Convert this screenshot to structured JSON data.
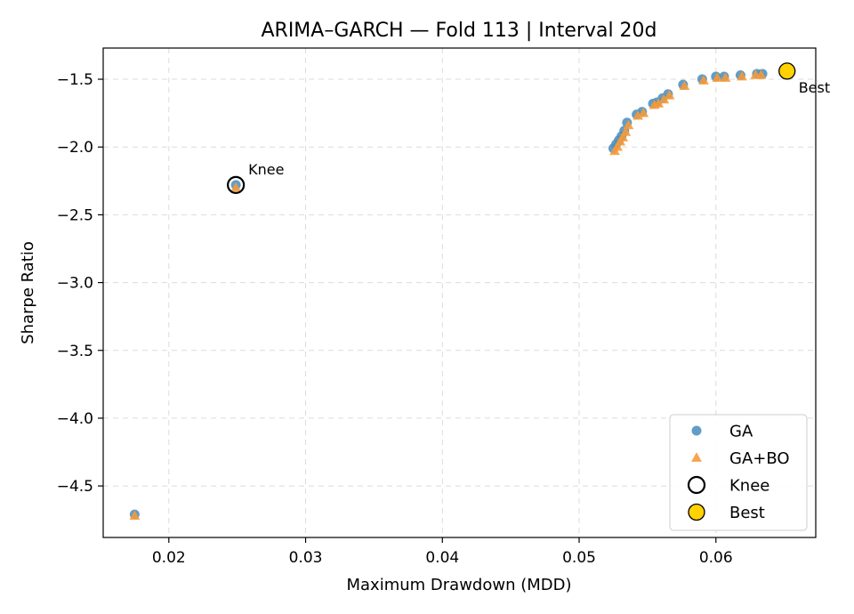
{
  "chart_data": {
    "type": "scatter",
    "title": "ARIMA–GARCH — Fold 113 | Interval 20d",
    "xlabel": "Maximum Drawdown (MDD)",
    "ylabel": "Sharpe Ratio",
    "xlim": [
      0.0152,
      0.0673
    ],
    "ylim": [
      -4.88,
      -1.27
    ],
    "xticks": [
      0.02,
      0.03,
      0.04,
      0.05,
      0.06
    ],
    "xtick_labels": [
      "0.02",
      "0.03",
      "0.04",
      "0.05",
      "0.06"
    ],
    "yticks": [
      -1.5,
      -2.0,
      -2.5,
      -3.0,
      -3.5,
      -4.0,
      -4.5
    ],
    "ytick_labels": [
      "−1.5",
      "−2.0",
      "−2.5",
      "−3.0",
      "−3.5",
      "−4.0",
      "−4.5"
    ],
    "grid": true,
    "legend_position": "bottom-right",
    "series": [
      {
        "name": "GA",
        "marker": "circle",
        "color": "#4c8fbf",
        "points": [
          [
            0.0175,
            -4.71
          ],
          [
            0.0249,
            -2.28
          ],
          [
            0.0525,
            -2.01
          ],
          [
            0.0527,
            -1.98
          ],
          [
            0.0529,
            -1.95
          ],
          [
            0.0531,
            -1.92
          ],
          [
            0.0533,
            -1.88
          ],
          [
            0.0535,
            -1.82
          ],
          [
            0.0542,
            -1.76
          ],
          [
            0.0546,
            -1.74
          ],
          [
            0.0554,
            -1.68
          ],
          [
            0.0557,
            -1.67
          ],
          [
            0.0561,
            -1.64
          ],
          [
            0.0565,
            -1.61
          ],
          [
            0.0576,
            -1.54
          ],
          [
            0.059,
            -1.5
          ],
          [
            0.06,
            -1.48
          ],
          [
            0.0606,
            -1.48
          ],
          [
            0.0618,
            -1.47
          ],
          [
            0.063,
            -1.46
          ],
          [
            0.0634,
            -1.46
          ]
        ]
      },
      {
        "name": "GA+BO",
        "marker": "triangle",
        "color": "#f59a3a",
        "points": [
          [
            0.0175,
            -4.72
          ],
          [
            0.0249,
            -2.3
          ],
          [
            0.0526,
            -2.03
          ],
          [
            0.0528,
            -2.0
          ],
          [
            0.053,
            -1.96
          ],
          [
            0.0532,
            -1.93
          ],
          [
            0.0534,
            -1.89
          ],
          [
            0.0536,
            -1.84
          ],
          [
            0.0543,
            -1.77
          ],
          [
            0.0547,
            -1.75
          ],
          [
            0.0555,
            -1.69
          ],
          [
            0.0558,
            -1.68
          ],
          [
            0.0562,
            -1.65
          ],
          [
            0.0566,
            -1.62
          ],
          [
            0.0577,
            -1.55
          ],
          [
            0.0591,
            -1.51
          ],
          [
            0.0601,
            -1.49
          ],
          [
            0.0607,
            -1.49
          ],
          [
            0.0619,
            -1.48
          ],
          [
            0.0629,
            -1.47
          ],
          [
            0.0633,
            -1.47
          ]
        ]
      }
    ],
    "highlights": [
      {
        "name": "Knee",
        "x": 0.0249,
        "y": -2.28,
        "marker": "open-circle",
        "color": "#000000",
        "label": "Knee"
      },
      {
        "name": "Best",
        "x": 0.0652,
        "y": -1.44,
        "marker": "filled-circle",
        "color": "#ffd200",
        "edge": "#000000",
        "label": "Best"
      }
    ],
    "legend": [
      {
        "label": "GA",
        "marker": "circle",
        "color": "#4c8fbf"
      },
      {
        "label": "GA+BO",
        "marker": "triangle",
        "color": "#f59a3a"
      },
      {
        "label": "Knee",
        "marker": "open-circle",
        "color": "#000000"
      },
      {
        "label": "Best",
        "marker": "filled-circle",
        "color": "#ffd200"
      }
    ]
  }
}
